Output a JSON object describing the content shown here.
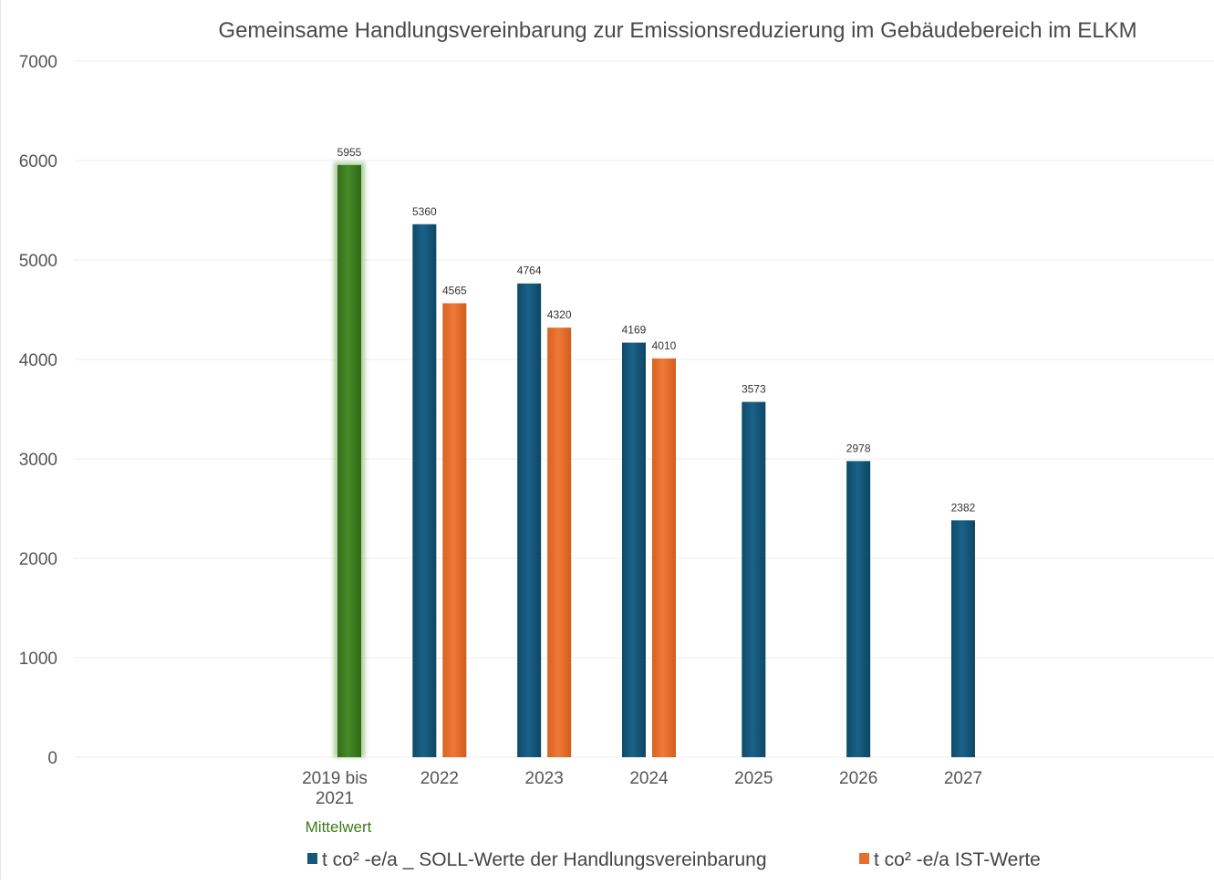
{
  "chart_data": {
    "type": "bar",
    "title": "Gemeinsame Handlungsvereinbarung zur Emissionsreduzierung im Gebäudebereich im ELKM",
    "categories": [
      "2019 bis 2021",
      "2022",
      "2023",
      "2024",
      "2025",
      "2026",
      "2027"
    ],
    "category_note": "Mittelwert",
    "ylim": [
      0,
      7000
    ],
    "yticks": [
      0,
      1000,
      2000,
      3000,
      4000,
      5000,
      6000,
      7000
    ],
    "grid": true,
    "legend_position": "bottom",
    "series": [
      {
        "name": "t co² -e/a _ SOLL-Werte der Handlungsvereinbarung",
        "color": "#14577a",
        "values": [
          5955,
          5360,
          4764,
          4169,
          3573,
          2978,
          2382
        ]
      },
      {
        "name": "t co² -e/a IST-Werte",
        "color": "#e56f2e",
        "values": [
          null,
          4565,
          4320,
          4010,
          null,
          null,
          null
        ]
      }
    ],
    "highlight": {
      "category_index": 0,
      "color": "#3e7d23",
      "note_color": "#3d7a1e"
    }
  }
}
